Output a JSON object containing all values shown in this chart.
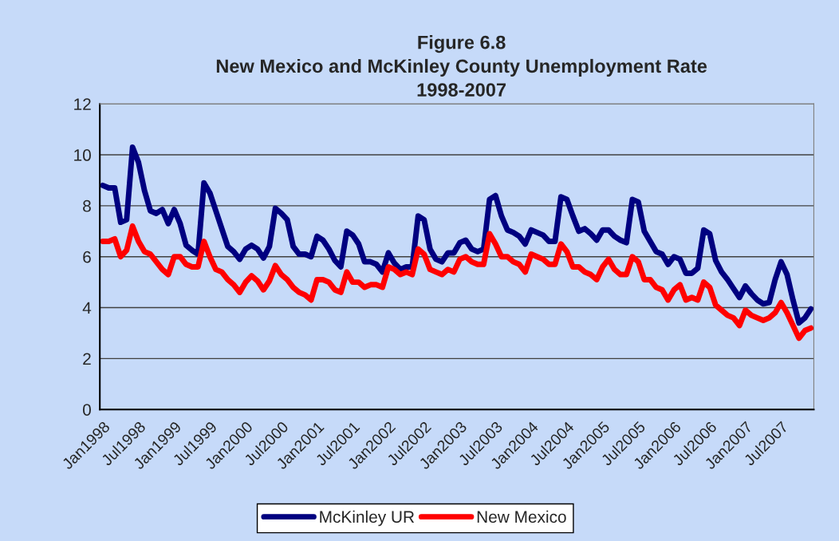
{
  "chart_data": {
    "type": "line",
    "title": "Figure 6.8\nNew Mexico and McKinley County Unemployment Rate\n1998-2007",
    "categories": [
      "Jan1998",
      null,
      null,
      null,
      null,
      null,
      "Jul1998",
      null,
      null,
      null,
      null,
      null,
      "Jan1999",
      null,
      null,
      null,
      null,
      null,
      "Jul1999",
      null,
      null,
      null,
      null,
      null,
      "Jan2000",
      null,
      null,
      null,
      null,
      null,
      "Jul2000",
      null,
      null,
      null,
      null,
      null,
      "Jan2001",
      null,
      null,
      null,
      null,
      null,
      "Jul2001",
      null,
      null,
      null,
      null,
      null,
      "Jan2002",
      null,
      null,
      null,
      null,
      null,
      "Jul2002",
      null,
      null,
      null,
      null,
      null,
      "Jan2003",
      null,
      null,
      null,
      null,
      null,
      "Jul2003",
      null,
      null,
      null,
      null,
      null,
      "Jan2004",
      null,
      null,
      null,
      null,
      null,
      "Jul2004",
      null,
      null,
      null,
      null,
      null,
      "Jan2005",
      null,
      null,
      null,
      null,
      null,
      "Jul2005",
      null,
      null,
      null,
      null,
      null,
      "Jan2006",
      null,
      null,
      null,
      null,
      null,
      "Jul2006",
      null,
      null,
      null,
      null,
      null,
      "Jan2007",
      null,
      null,
      null,
      null,
      null,
      "Jul2007",
      null,
      null,
      null,
      null,
      null
    ],
    "series": [
      {
        "name": "McKinley UR",
        "color": "#000080",
        "values": [
          8.8,
          8.7,
          8.7,
          7.35,
          7.45,
          10.3,
          9.7,
          8.6,
          7.8,
          7.7,
          7.85,
          7.3,
          7.85,
          7.3,
          6.45,
          6.25,
          6.1,
          8.9,
          8.5,
          7.8,
          7.1,
          6.4,
          6.2,
          5.9,
          6.3,
          6.45,
          6.3,
          5.95,
          6.4,
          7.9,
          7.7,
          7.45,
          6.4,
          6.1,
          6.1,
          6.0,
          6.8,
          6.65,
          6.3,
          5.85,
          5.6,
          7.0,
          6.85,
          6.5,
          5.8,
          5.8,
          5.7,
          5.4,
          6.15,
          5.75,
          5.5,
          5.6,
          5.6,
          7.6,
          7.45,
          6.3,
          5.9,
          5.8,
          6.15,
          6.15,
          6.55,
          6.65,
          6.3,
          6.2,
          6.3,
          8.25,
          8.4,
          7.6,
          7.05,
          6.95,
          6.8,
          6.5,
          7.05,
          6.95,
          6.85,
          6.6,
          6.6,
          8.35,
          8.25,
          7.6,
          7.0,
          7.1,
          6.9,
          6.65,
          7.05,
          7.05,
          6.8,
          6.65,
          6.55,
          8.25,
          8.15,
          7.0,
          6.6,
          6.2,
          6.1,
          5.7,
          6.0,
          5.9,
          5.35,
          5.35,
          5.55,
          7.05,
          6.9,
          5.85,
          5.4,
          5.1,
          4.75,
          4.4,
          4.85,
          4.55,
          4.3,
          4.15,
          4.2,
          5.1,
          5.8,
          5.3,
          4.3,
          3.4,
          3.6,
          3.95
        ]
      },
      {
        "name": "New Mexico",
        "color": "#ff0000",
        "values": [
          6.6,
          6.6,
          6.7,
          6.0,
          6.25,
          7.2,
          6.6,
          6.2,
          6.1,
          5.8,
          5.5,
          5.3,
          6.0,
          6.0,
          5.7,
          5.6,
          5.6,
          6.6,
          6.0,
          5.5,
          5.4,
          5.1,
          4.9,
          4.6,
          5.0,
          5.25,
          5.05,
          4.7,
          5.05,
          5.65,
          5.3,
          5.1,
          4.8,
          4.6,
          4.5,
          4.3,
          5.1,
          5.1,
          5.0,
          4.7,
          4.6,
          5.4,
          5.0,
          5.0,
          4.8,
          4.9,
          4.9,
          4.8,
          5.6,
          5.5,
          5.3,
          5.4,
          5.3,
          6.3,
          6.1,
          5.5,
          5.4,
          5.3,
          5.5,
          5.4,
          5.9,
          6.0,
          5.8,
          5.7,
          5.7,
          6.9,
          6.5,
          6.0,
          6.0,
          5.8,
          5.7,
          5.4,
          6.1,
          6.0,
          5.9,
          5.7,
          5.7,
          6.5,
          6.2,
          5.6,
          5.6,
          5.4,
          5.3,
          5.1,
          5.6,
          5.9,
          5.5,
          5.3,
          5.3,
          6.0,
          5.8,
          5.1,
          5.1,
          4.8,
          4.7,
          4.3,
          4.7,
          4.9,
          4.3,
          4.4,
          4.3,
          5.0,
          4.8,
          4.1,
          3.9,
          3.7,
          3.6,
          3.3,
          3.9,
          3.7,
          3.6,
          3.5,
          3.6,
          3.8,
          4.2,
          3.8,
          3.3,
          2.8,
          3.1,
          3.2
        ]
      }
    ],
    "ylim": [
      0,
      12
    ],
    "yticks": [
      0,
      2,
      4,
      6,
      8,
      10,
      12
    ],
    "grid": "y",
    "legend": "bottom",
    "marker": "none",
    "line_style": "solid"
  }
}
